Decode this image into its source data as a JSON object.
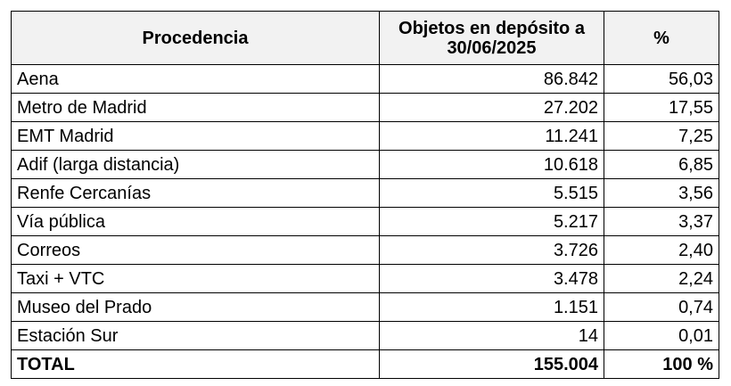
{
  "table": {
    "headers": [
      "Procedencia",
      "Objetos en depósito a 30/06/2025",
      "%"
    ],
    "rows": [
      [
        "Aena",
        "86.842",
        "56,03"
      ],
      [
        "Metro de Madrid",
        "27.202",
        "17,55"
      ],
      [
        "EMT Madrid",
        "11.241",
        "7,25"
      ],
      [
        "Adif (larga distancia)",
        "10.618",
        "6,85"
      ],
      [
        "Renfe Cercanías",
        "5.515",
        "3,56"
      ],
      [
        "Vía pública",
        "5.217",
        "3,37"
      ],
      [
        "Correos",
        "3.726",
        "2,40"
      ],
      [
        "Taxi + VTC",
        "3.478",
        "2,24"
      ],
      [
        "Museo del Prado",
        "1.151",
        "0,74"
      ],
      [
        "Estación Sur",
        "14",
        "0,01"
      ]
    ],
    "total": [
      "TOTAL",
      "155.004",
      "100 %"
    ]
  }
}
